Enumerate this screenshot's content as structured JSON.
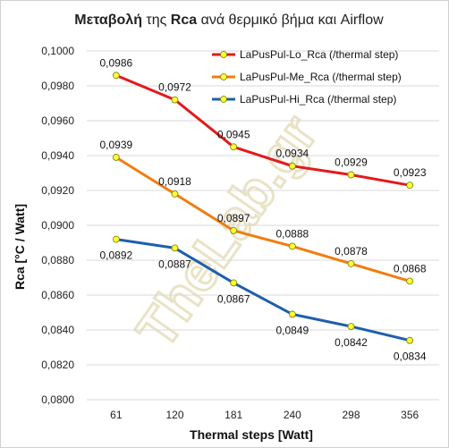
{
  "chart_data": {
    "type": "line",
    "title_bold": "Μεταβολή",
    "title_mid": " της ",
    "title_bold2": "Rca",
    "title_rest": " ανά θερμικό βήμα και  Airflow",
    "xlabel": "Thermal steps  [Watt]",
    "ylabel": "Rca    [°C / Watt]",
    "categories": [
      "61",
      "120",
      "181",
      "240",
      "298",
      "356"
    ],
    "ylim": [
      0.08,
      0.1
    ],
    "ytick_step": 0.002,
    "ytick_labels": [
      "0,0800",
      "0,0820",
      "0,0840",
      "0,0860",
      "0,0880",
      "0,0900",
      "0,0920",
      "0,0940",
      "0,0960",
      "0,0980",
      "0,1000"
    ],
    "grid": "horizontal",
    "legend": "top-right",
    "series": [
      {
        "name": "LaPusPul-Lo_Rca (/thermal step)",
        "color": "#e31a1c",
        "values": [
          0.0986,
          0.0972,
          0.0945,
          0.0934,
          0.0929,
          0.0923
        ],
        "labels": [
          "0,0986",
          "0,0972",
          "0,0945",
          "0,0934",
          "0,0929",
          "0,0923"
        ],
        "label_pos": "above"
      },
      {
        "name": "LaPusPul-Me_Rca (/thermal step)",
        "color": "#f07d10",
        "values": [
          0.0939,
          0.0918,
          0.0897,
          0.0888,
          0.0878,
          0.0868
        ],
        "labels": [
          "0,0939",
          "0,0918",
          "0,0897",
          "0,0888",
          "0,0878",
          "0,0868"
        ],
        "label_pos": "above"
      },
      {
        "name": "LaPusPul-Hi_Rca (/thermal step)",
        "color": "#1f5faa",
        "values": [
          0.0892,
          0.0887,
          0.0867,
          0.0849,
          0.0842,
          0.0834
        ],
        "labels": [
          "0,0892",
          "0,0887",
          "0,0867",
          "0,0849",
          "0,0842",
          "0,0834"
        ],
        "label_pos": "below"
      }
    ],
    "marker_fill": "#ffff33",
    "watermark": "TheLab.gr",
    "watermark_color": "#e9e3c6"
  }
}
